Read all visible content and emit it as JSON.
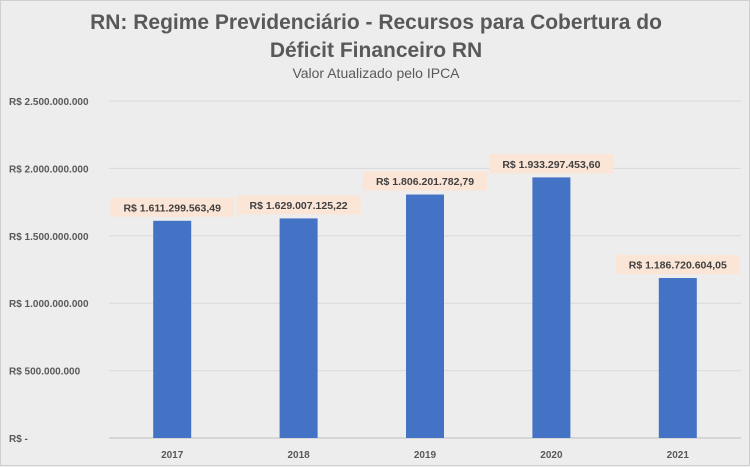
{
  "chart_data": {
    "type": "bar",
    "title": "RN: Regime Previdenciário - Recursos para Cobertura do Déficit Financeiro RN",
    "title_lines": [
      "RN: Regime Previdenciário - Recursos para Cobertura do",
      "Déficit Financeiro RN"
    ],
    "subtitle": "Valor Atualizado pelo IPCA",
    "categories": [
      "2017",
      "2018",
      "2019",
      "2020",
      "2021"
    ],
    "values": [
      1611299563.49,
      1629007125.22,
      1806201782.79,
      1933297453.6,
      1186720604.05
    ],
    "data_labels": [
      "R$ 1.611.299.563,49",
      "R$ 1.629.007.125,22",
      "R$ 1.806.201.782,79",
      "R$ 1.933.297.453,60",
      "R$ 1.186.720.604,05"
    ],
    "yticks": [
      0,
      500000000,
      1000000000,
      1500000000,
      2000000000,
      2500000000
    ],
    "ytick_labels": [
      "R$ -",
      "R$ 500.000.000",
      "R$ 1.000.000.000",
      "R$ 1.500.000.000",
      "R$ 2.000.000.000",
      "R$ 2.500.000.000"
    ],
    "ylim": [
      0,
      2500000000
    ],
    "xlabel": "",
    "ylabel": "",
    "grid": true,
    "colors": {
      "bar": "#4472c4",
      "label_bg": "#fbe5d6",
      "grid": "#d9d9d9"
    }
  }
}
